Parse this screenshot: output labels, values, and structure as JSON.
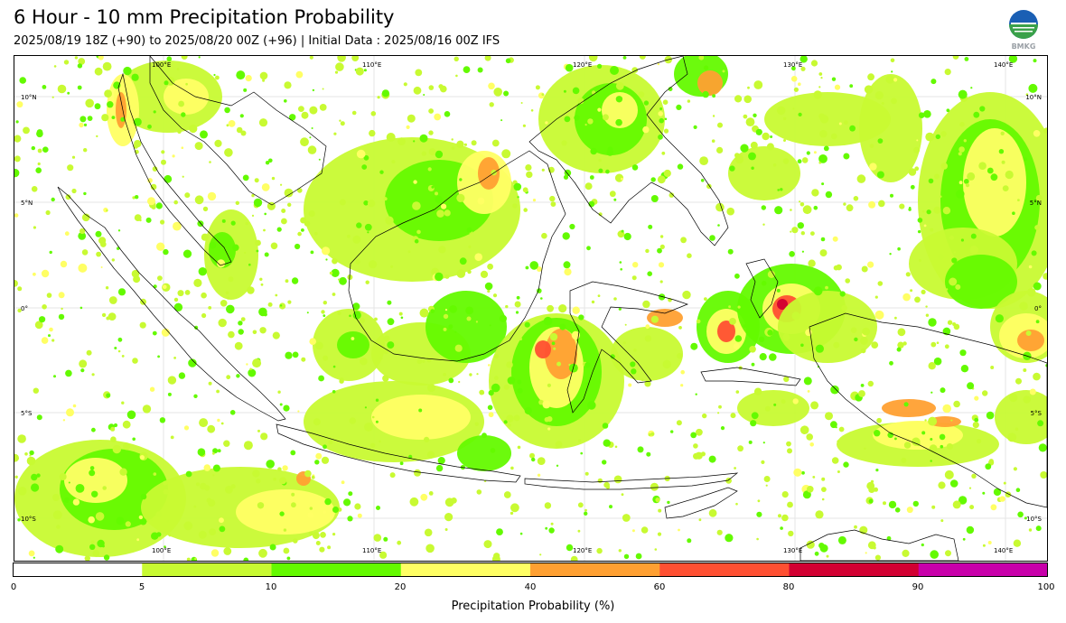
{
  "title": "6 Hour - 10 mm Precipitation Probability",
  "subtitle": "2025/08/19 18Z (+90) to 2025/08/20 00Z (+96) | Initial Data : 2025/08/16 00Z IFS",
  "logo": {
    "icon": "bmkg-logo",
    "text": "BMKG"
  },
  "map": {
    "region": "Indonesia / Maritime Continent",
    "lon_range": [
      93,
      142
    ],
    "lat_range": [
      -12,
      12
    ],
    "gridlines": true,
    "top_lon_labels": [
      "100°E",
      "110°E",
      "120°E",
      "130°E",
      "140°E"
    ],
    "bottom_lon_labels": [
      "100°E",
      "110°E",
      "120°E",
      "130°E",
      "140°E"
    ],
    "left_lat_labels": [
      "10°N",
      "5°N",
      "0°",
      "5°S",
      "10°S"
    ],
    "right_lat_labels": [
      "10°N",
      "5°N",
      "0°",
      "5°S",
      "10°S"
    ]
  },
  "colorbar": {
    "label": "Precipitation Probability (%)",
    "ticks": [
      "0",
      "5",
      "10",
      "20",
      "40",
      "60",
      "80",
      "90",
      "100"
    ],
    "colors": [
      "#ffffff",
      "#c8fa32",
      "#64fa00",
      "#ffff64",
      "#ffa032",
      "#ff5032",
      "#d20032",
      "#c800aa"
    ]
  }
}
